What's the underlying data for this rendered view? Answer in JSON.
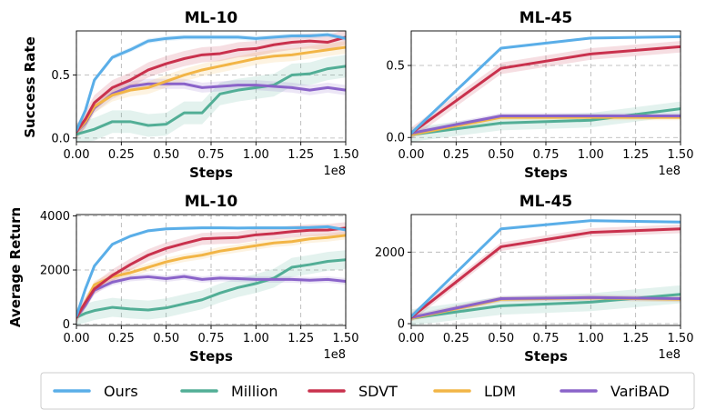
{
  "colors": {
    "ours": "#5aaee8",
    "million": "#52ae96",
    "sdvt": "#c9314d",
    "ldm": "#f2b546",
    "varibad": "#8a63c9"
  },
  "legend": {
    "placement": "bottom",
    "entries": [
      {
        "key": "ours",
        "label": "Ours"
      },
      {
        "key": "million",
        "label": "Million"
      },
      {
        "key": "sdvt",
        "label": "SDVT"
      },
      {
        "key": "ldm",
        "label": "LDM"
      },
      {
        "key": "varibad",
        "label": "VariBAD"
      }
    ]
  },
  "chart_data": [
    {
      "id": "sr10",
      "type": "line",
      "title": "ML-10",
      "xlabel": "Steps",
      "ylabel": "Success Rate",
      "x_multiplier_label": "1e8",
      "xlim": [
        0,
        1.5
      ],
      "ylim": [
        -0.03,
        0.85
      ],
      "xticks": [
        0,
        0.25,
        0.5,
        0.75,
        1.0,
        1.25,
        1.5
      ],
      "xtick_labels": [
        "0.00",
        "0.25",
        "0.50",
        "0.75",
        "1.00",
        "1.25",
        "1.50"
      ],
      "yticks": [
        0,
        0.5
      ],
      "ytick_labels": [
        "0.0",
        "0.5"
      ],
      "grid": true,
      "series": [
        {
          "key": "million",
          "x": [
            0,
            0.05,
            0.1,
            0.2,
            0.3,
            0.4,
            0.5,
            0.6,
            0.7,
            0.8,
            0.9,
            1.0,
            1.1,
            1.2,
            1.3,
            1.4,
            1.5
          ],
          "y": [
            0.03,
            0.05,
            0.07,
            0.13,
            0.13,
            0.1,
            0.11,
            0.2,
            0.2,
            0.35,
            0.38,
            0.4,
            0.42,
            0.5,
            0.51,
            0.55,
            0.57
          ],
          "band": 0.09
        },
        {
          "key": "varibad",
          "x": [
            0,
            0.05,
            0.1,
            0.2,
            0.3,
            0.4,
            0.5,
            0.6,
            0.7,
            0.8,
            0.9,
            1.0,
            1.1,
            1.2,
            1.3,
            1.4,
            1.5
          ],
          "y": [
            0.05,
            0.12,
            0.24,
            0.35,
            0.41,
            0.43,
            0.43,
            0.43,
            0.4,
            0.41,
            0.42,
            0.42,
            0.41,
            0.4,
            0.38,
            0.4,
            0.38
          ],
          "band": 0.04
        },
        {
          "key": "ldm",
          "x": [
            0,
            0.05,
            0.1,
            0.2,
            0.3,
            0.4,
            0.5,
            0.6,
            0.7,
            0.8,
            0.9,
            1.0,
            1.1,
            1.2,
            1.3,
            1.4,
            1.5
          ],
          "y": [
            0.05,
            0.13,
            0.25,
            0.34,
            0.38,
            0.4,
            0.45,
            0.5,
            0.54,
            0.57,
            0.6,
            0.63,
            0.65,
            0.66,
            0.68,
            0.7,
            0.72
          ],
          "band": 0.05
        },
        {
          "key": "sdvt",
          "x": [
            0,
            0.05,
            0.1,
            0.2,
            0.3,
            0.4,
            0.5,
            0.6,
            0.7,
            0.8,
            0.9,
            1.0,
            1.1,
            1.2,
            1.3,
            1.4,
            1.5
          ],
          "y": [
            0.05,
            0.15,
            0.28,
            0.4,
            0.46,
            0.54,
            0.59,
            0.63,
            0.66,
            0.67,
            0.7,
            0.71,
            0.74,
            0.76,
            0.77,
            0.76,
            0.8
          ],
          "band": 0.06
        },
        {
          "key": "ours",
          "x": [
            0,
            0.05,
            0.1,
            0.2,
            0.3,
            0.4,
            0.5,
            0.6,
            0.7,
            0.8,
            0.9,
            1.0,
            1.1,
            1.2,
            1.3,
            1.4,
            1.5
          ],
          "y": [
            0.06,
            0.22,
            0.46,
            0.64,
            0.7,
            0.77,
            0.79,
            0.8,
            0.8,
            0.8,
            0.8,
            0.79,
            0.8,
            0.81,
            0.81,
            0.82,
            0.79
          ],
          "band": 0.02
        }
      ]
    },
    {
      "id": "sr45",
      "type": "line",
      "title": "ML-45",
      "xlabel": "Steps",
      "ylabel": "",
      "x_multiplier_label": "1e8",
      "xlim": [
        0,
        1.5
      ],
      "ylim": [
        -0.03,
        0.74
      ],
      "xticks": [
        0,
        0.25,
        0.5,
        0.75,
        1.0,
        1.25,
        1.5
      ],
      "xtick_labels": [
        "0.00",
        "0.25",
        "0.50",
        "0.75",
        "1.00",
        "1.25",
        "1.50"
      ],
      "yticks": [
        0,
        0.5
      ],
      "ytick_labels": [
        "0.0",
        "0.5"
      ],
      "grid": true,
      "series": [
        {
          "key": "million",
          "x": [
            0,
            0.5,
            1.0,
            1.5
          ],
          "y": [
            0.02,
            0.1,
            0.12,
            0.2
          ],
          "band": 0.05
        },
        {
          "key": "ldm",
          "x": [
            0,
            0.5,
            1.0,
            1.5
          ],
          "y": [
            0.02,
            0.14,
            0.14,
            0.14
          ],
          "band": 0.02
        },
        {
          "key": "varibad",
          "x": [
            0,
            0.5,
            1.0,
            1.5
          ],
          "y": [
            0.03,
            0.15,
            0.15,
            0.15
          ],
          "band": 0.02
        },
        {
          "key": "sdvt",
          "x": [
            0,
            0.5,
            1.0,
            1.5
          ],
          "y": [
            0.03,
            0.48,
            0.58,
            0.63
          ],
          "band": 0.04
        },
        {
          "key": "ours",
          "x": [
            0,
            0.5,
            1.0,
            1.5
          ],
          "y": [
            0.03,
            0.62,
            0.69,
            0.7
          ],
          "band": 0.01
        }
      ]
    },
    {
      "id": "ar10",
      "type": "line",
      "title": "ML-10",
      "xlabel": "Steps",
      "ylabel": "Average Return",
      "x_multiplier_label": "1e8",
      "xlim": [
        0,
        1.5
      ],
      "ylim": [
        -50,
        4050
      ],
      "xticks": [
        0,
        0.25,
        0.5,
        0.75,
        1.0,
        1.25,
        1.5
      ],
      "xtick_labels": [
        "0.00",
        "0.25",
        "0.50",
        "0.75",
        "1.00",
        "1.25",
        "1.50"
      ],
      "yticks": [
        0,
        2000,
        4000
      ],
      "ytick_labels": [
        "0",
        "2000",
        "4000"
      ],
      "grid": true,
      "series": [
        {
          "key": "million",
          "x": [
            0,
            0.05,
            0.1,
            0.2,
            0.3,
            0.4,
            0.5,
            0.6,
            0.7,
            0.8,
            0.9,
            1.0,
            1.1,
            1.2,
            1.3,
            1.4,
            1.5
          ],
          "y": [
            250,
            400,
            500,
            620,
            560,
            520,
            600,
            750,
            900,
            1150,
            1350,
            1500,
            1700,
            2100,
            2200,
            2320,
            2380
          ],
          "band": 350
        },
        {
          "key": "varibad",
          "x": [
            0,
            0.05,
            0.1,
            0.2,
            0.3,
            0.4,
            0.5,
            0.6,
            0.7,
            0.8,
            0.9,
            1.0,
            1.1,
            1.2,
            1.3,
            1.4,
            1.5
          ],
          "y": [
            250,
            700,
            1250,
            1550,
            1700,
            1750,
            1680,
            1760,
            1650,
            1700,
            1680,
            1650,
            1650,
            1650,
            1620,
            1650,
            1580
          ],
          "band": 120
        },
        {
          "key": "ldm",
          "x": [
            0,
            0.05,
            0.1,
            0.2,
            0.3,
            0.4,
            0.5,
            0.6,
            0.7,
            0.8,
            0.9,
            1.0,
            1.1,
            1.2,
            1.3,
            1.4,
            1.5
          ],
          "y": [
            250,
            800,
            1450,
            1750,
            1900,
            2100,
            2300,
            2450,
            2550,
            2700,
            2800,
            2900,
            3000,
            3050,
            3150,
            3200,
            3280
          ],
          "band": 150
        },
        {
          "key": "sdvt",
          "x": [
            0,
            0.05,
            0.1,
            0.2,
            0.3,
            0.4,
            0.5,
            0.6,
            0.7,
            0.8,
            0.9,
            1.0,
            1.1,
            1.2,
            1.3,
            1.4,
            1.5
          ],
          "y": [
            250,
            800,
            1300,
            1800,
            2200,
            2550,
            2800,
            2980,
            3150,
            3180,
            3200,
            3300,
            3350,
            3420,
            3470,
            3480,
            3550
          ],
          "band": 220
        },
        {
          "key": "ours",
          "x": [
            0,
            0.05,
            0.1,
            0.2,
            0.3,
            0.4,
            0.5,
            0.6,
            0.7,
            0.8,
            0.9,
            1.0,
            1.1,
            1.2,
            1.3,
            1.4,
            1.5
          ],
          "y": [
            300,
            1300,
            2150,
            2950,
            3250,
            3450,
            3520,
            3540,
            3560,
            3560,
            3550,
            3560,
            3560,
            3560,
            3570,
            3600,
            3480
          ],
          "band": 60
        }
      ]
    },
    {
      "id": "ar45",
      "type": "line",
      "title": "ML-45",
      "xlabel": "Steps",
      "ylabel": "",
      "x_multiplier_label": "1e8",
      "xlim": [
        0,
        1.5
      ],
      "ylim": [
        -50,
        3050
      ],
      "xticks": [
        0,
        0.25,
        0.5,
        0.75,
        1.0,
        1.25,
        1.5
      ],
      "xtick_labels": [
        "0.00",
        "0.25",
        "0.50",
        "0.75",
        "1.00",
        "1.25",
        "1.50"
      ],
      "yticks": [
        0,
        2000
      ],
      "ytick_labels": [
        "0",
        "2000"
      ],
      "grid": true,
      "series": [
        {
          "key": "million",
          "x": [
            0,
            0.5,
            1.0,
            1.5
          ],
          "y": [
            150,
            500,
            600,
            820
          ],
          "band": 250
        },
        {
          "key": "ldm",
          "x": [
            0,
            0.5,
            1.0,
            1.5
          ],
          "y": [
            150,
            680,
            720,
            680
          ],
          "band": 80
        },
        {
          "key": "varibad",
          "x": [
            0,
            0.5,
            1.0,
            1.5
          ],
          "y": [
            170,
            700,
            730,
            700
          ],
          "band": 80
        },
        {
          "key": "sdvt",
          "x": [
            0,
            0.5,
            1.0,
            1.5
          ],
          "y": [
            180,
            2150,
            2550,
            2650
          ],
          "band": 120
        },
        {
          "key": "ours",
          "x": [
            0,
            0.5,
            1.0,
            1.5
          ],
          "y": [
            200,
            2650,
            2880,
            2840
          ],
          "band": 40
        }
      ]
    }
  ]
}
